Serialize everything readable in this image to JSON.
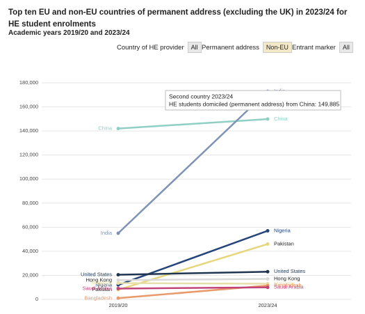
{
  "chart_data": {
    "type": "slope",
    "title": "Top ten EU and non-EU countries of permanent address (excluding the UK) in 2023/24 for HE student enrolments",
    "subtitle": "Academic years 2019/20 and 2023/24",
    "filters": [
      {
        "label": "Country of HE provider",
        "value": "All"
      },
      {
        "label": "Permanent address",
        "value": "Non-EU"
      },
      {
        "label": "Entrant marker",
        "value": "All"
      }
    ],
    "categories": [
      "2019/20",
      "2023/24"
    ],
    "series": [
      {
        "name": "China",
        "color": "#8fcfc4",
        "values": [
          142000,
          149885
        ]
      },
      {
        "name": "India",
        "color": "#7d93b5",
        "values": [
          55000,
          173000
        ]
      },
      {
        "name": "Nigeria",
        "color": "#25447a",
        "values": [
          12000,
          57000
        ]
      },
      {
        "name": "Pakistan",
        "color": "#e6d67c",
        "values": [
          8000,
          46000
        ]
      },
      {
        "name": "United States",
        "color": "#1f3550",
        "values": [
          20500,
          23000
        ]
      },
      {
        "name": "Hong Kong",
        "color": "#d9d9d9",
        "values": [
          16000,
          17000
        ]
      },
      {
        "name": "Malaysia",
        "color": "#e7dfab",
        "values": [
          13500,
          13000
        ]
      },
      {
        "name": "Bangladesh",
        "color": "#e89a6a",
        "values": [
          1000,
          11500
        ]
      },
      {
        "name": "Saudi Arabia",
        "color": "#c2457a",
        "values": [
          9000,
          10000
        ]
      }
    ],
    "ylim": [
      0,
      180000
    ],
    "yticks": [
      0,
      {
        "value": 20000,
        "label": "20,000"
      },
      {
        "value": 40000,
        "label": "40,000"
      },
      {
        "value": 60000,
        "label": "60,000"
      },
      {
        "value": 80000,
        "label": "80,000"
      },
      {
        "value": 100000,
        "label": "100,000"
      },
      {
        "value": 120000,
        "label": "120,000"
      },
      {
        "value": 140000,
        "label": "140,000"
      },
      {
        "value": 160000,
        "label": "160,000"
      },
      {
        "value": 180000,
        "label": "180,000"
      }
    ],
    "grid": true,
    "tooltip": {
      "title": "Second country 2023/24",
      "text": "HE students domiciled (permanent address) from China: 149,885"
    }
  }
}
